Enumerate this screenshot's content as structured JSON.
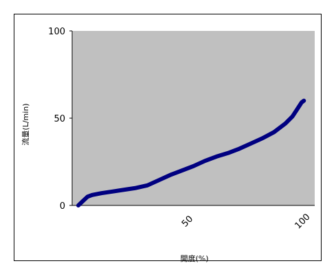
{
  "chart_data": {
    "type": "line",
    "xlabel": "開度(%)",
    "ylabel": "流量(L/min)",
    "xlim": [
      0,
      100
    ],
    "ylim": [
      0,
      100
    ],
    "x_ticks": [
      50,
      100
    ],
    "y_ticks": [
      0,
      50,
      100
    ],
    "grid": false,
    "legend": "none",
    "colors": {
      "plot_background": "#c0c0c0",
      "line": "#000080"
    },
    "series": [
      {
        "x": [
          0,
          2,
          4,
          6,
          10,
          15,
          20,
          25,
          30,
          35,
          40,
          45,
          50,
          55,
          60,
          65,
          70,
          75,
          80,
          85,
          90,
          93,
          95,
          97,
          98
        ],
        "y": [
          0,
          2.5,
          5,
          6,
          7,
          8,
          9,
          10,
          11.5,
          14.5,
          17.5,
          20,
          22.5,
          25.5,
          28,
          30,
          32.5,
          35.5,
          38.5,
          42,
          47,
          51,
          55,
          59,
          60
        ]
      }
    ]
  }
}
